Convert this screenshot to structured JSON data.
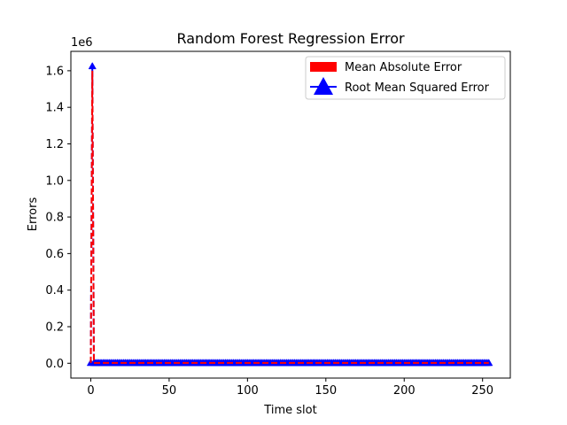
{
  "chart_data": {
    "type": "line",
    "title": "Random Forest Regression Error",
    "xlabel": "Time slot",
    "ylabel": "Errors",
    "y_offset_label": "1e6",
    "xlim": [
      -12.7,
      267.7
    ],
    "ylim": [
      -81000,
      1706000
    ],
    "x_ticks": [
      0,
      50,
      100,
      150,
      200,
      250
    ],
    "x_tick_labels": [
      "0",
      "50",
      "100",
      "150",
      "200",
      "250"
    ],
    "y_ticks": [
      0,
      200000,
      400000,
      600000,
      800000,
      1000000,
      1200000,
      1400000,
      1600000
    ],
    "y_tick_labels": [
      "0.0",
      "0.2",
      "0.4",
      "0.6",
      "0.8",
      "1.0",
      "1.2",
      "1.4",
      "1.6"
    ],
    "grid": false,
    "legend_position": "top-right",
    "num_points": 255,
    "series": [
      {
        "name": "Mean Absolute Error",
        "color": "#ff0000",
        "linestyle": "dashed",
        "marker": "none",
        "spike": {
          "x": 1,
          "y": 1600000
        },
        "baseline": 2000
      },
      {
        "name": "Root Mean Squared Error",
        "color": "#0000ff",
        "linestyle": "dashed",
        "marker": "triangle-up",
        "spike": {
          "x": 1,
          "y": 1625000
        },
        "baseline": 2000
      }
    ]
  }
}
